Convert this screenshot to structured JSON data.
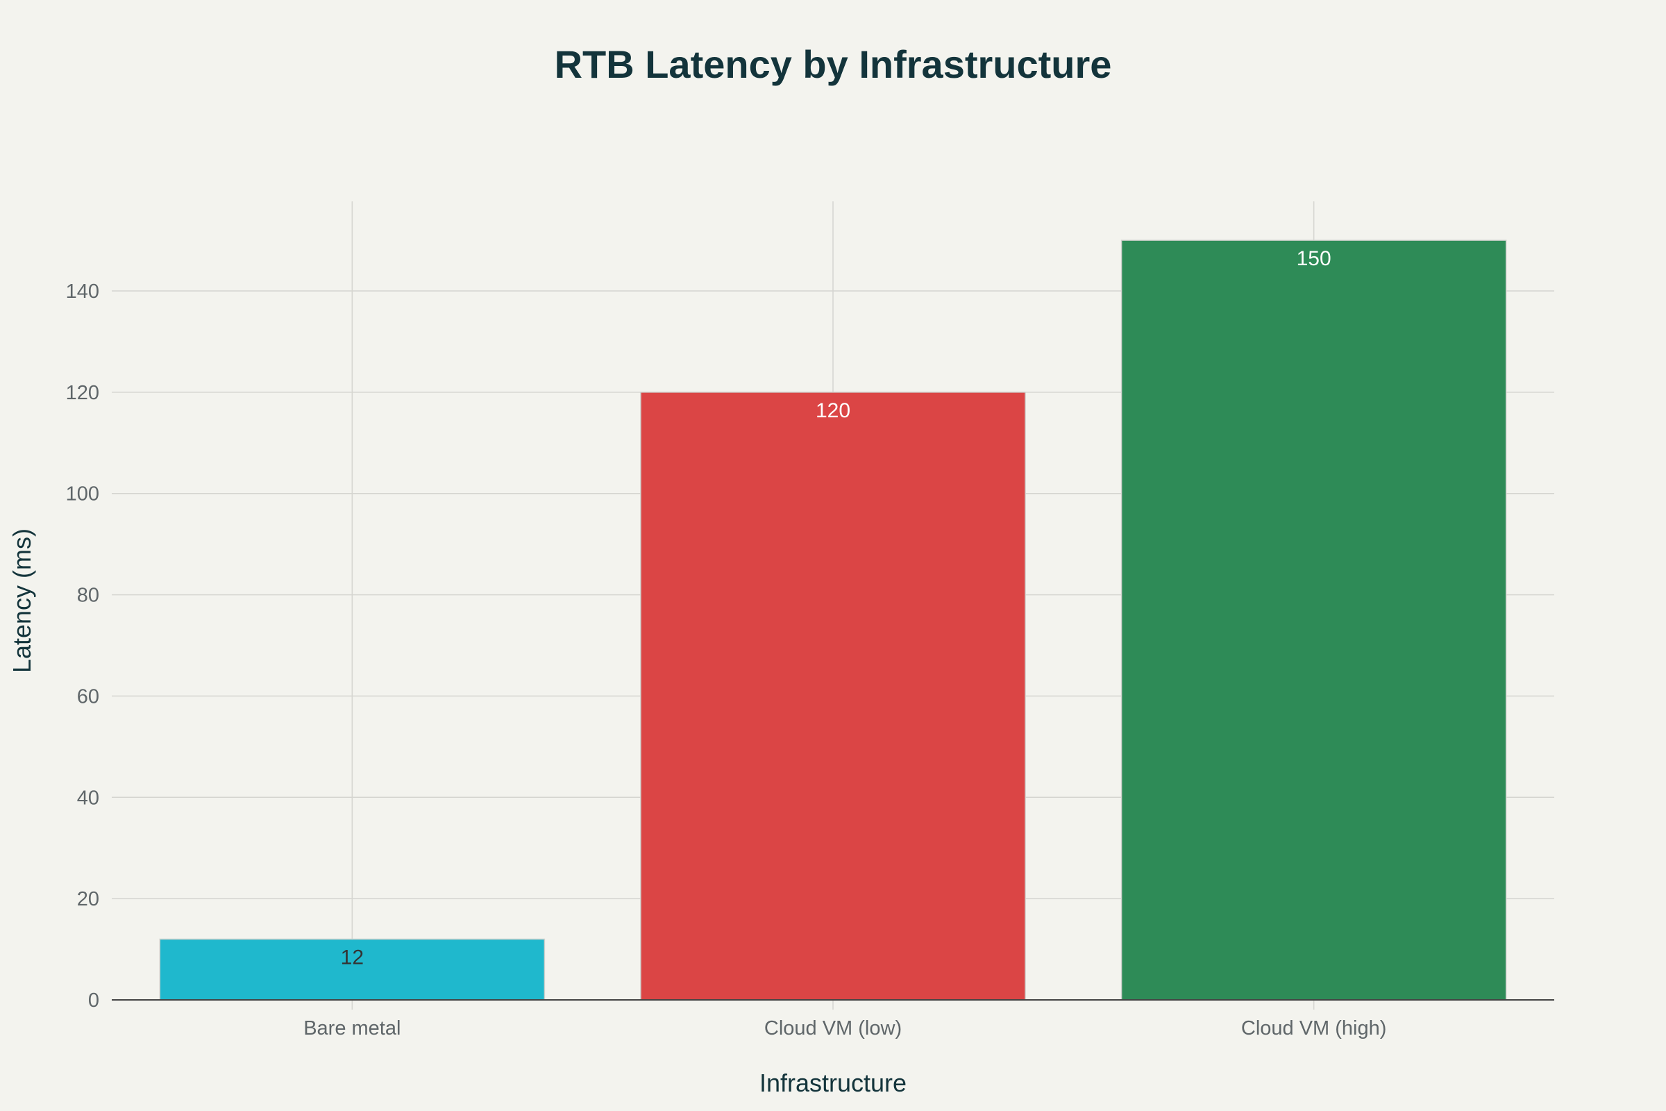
{
  "chart_data": {
    "type": "bar",
    "title": "RTB Latency by Infrastructure",
    "xlabel": "Infrastructure",
    "ylabel": "Latency (ms)",
    "categories": [
      "Bare metal",
      "Cloud VM (low)",
      "Cloud VM (high)"
    ],
    "values": [
      12,
      120,
      150
    ],
    "data_labels": [
      "12",
      "120",
      "150"
    ],
    "colors": [
      "#1fb8cd",
      "#db4545",
      "#2e8b57"
    ],
    "label_colors": [
      "#333333",
      "#ffffff",
      "#ffffff"
    ],
    "ylim": [
      0,
      158
    ],
    "yticks": [
      0,
      20,
      40,
      60,
      80,
      100,
      120,
      140
    ],
    "grid": true,
    "legend": "none"
  }
}
